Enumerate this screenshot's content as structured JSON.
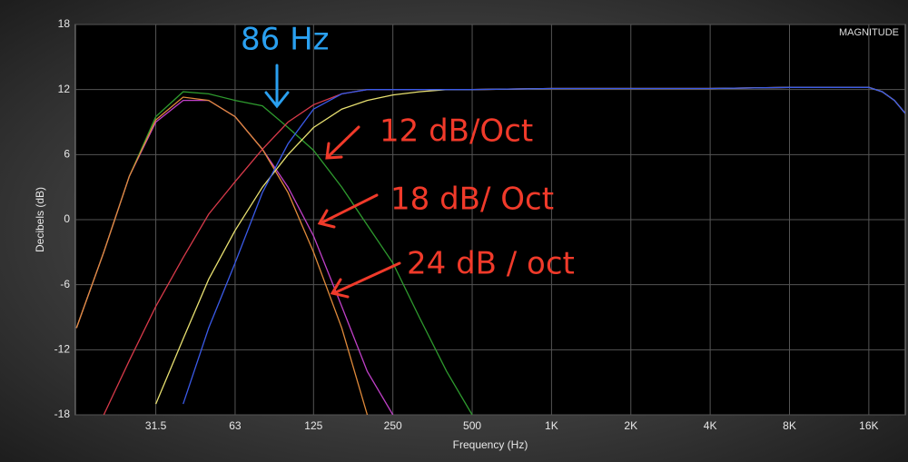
{
  "chart_data": {
    "type": "line",
    "panel_label": "MAGNITUDE",
    "xlabel": "Frequency (Hz)",
    "ylabel": "Decibels (dB)",
    "xscale": "log",
    "grid": true,
    "xlim": [
      15.6,
      22000
    ],
    "ylim": [
      -18,
      18
    ],
    "xticks": [
      31.5,
      63,
      125,
      250,
      500,
      {
        "value": 1000,
        "label": "1K"
      },
      {
        "value": 2000,
        "label": "2K"
      },
      {
        "value": 4000,
        "label": "4K"
      },
      {
        "value": 8000,
        "label": "8K"
      },
      {
        "value": 16000,
        "label": "16K"
      }
    ],
    "yticks": [
      -18,
      -12,
      -6,
      0,
      6,
      12,
      18
    ],
    "x": [
      15.75,
      20,
      25,
      31.5,
      40,
      50,
      63,
      80,
      100,
      125,
      160,
      200,
      250,
      315,
      400,
      500,
      1000,
      2000,
      4000,
      8000,
      16000,
      18000,
      20000,
      22000
    ],
    "series": [
      {
        "color": "#2e9a2e",
        "values": [
          -10,
          -3,
          4,
          9.5,
          11.8,
          11.6,
          11,
          10.5,
          8.5,
          6.4,
          3,
          -0.5,
          -4,
          -9,
          -14,
          -18,
          null,
          null,
          null,
          null,
          null,
          null,
          null,
          null
        ]
      },
      {
        "color": "#c040c8",
        "values": [
          -10,
          -3,
          4,
          9,
          11,
          11,
          9.5,
          6.5,
          3,
          -1.5,
          -8,
          -14,
          -18,
          null,
          null,
          null,
          null,
          null,
          null,
          null,
          null,
          null,
          null,
          null
        ]
      },
      {
        "color": "#e08a3a",
        "values": [
          -10,
          -3,
          4,
          9.2,
          11.3,
          11,
          9.5,
          6.5,
          2.5,
          -3,
          -10,
          -18,
          null,
          null,
          null,
          null,
          null,
          null,
          null,
          null,
          null,
          null,
          null,
          null
        ]
      },
      {
        "color": "#d83a4a",
        "values": [
          null,
          -18,
          -13,
          -8,
          -3.5,
          0.5,
          3.5,
          6.5,
          9,
          10.6,
          11.6,
          12,
          12,
          12,
          12,
          12,
          12.1,
          12.1,
          12.1,
          12.2,
          12.2,
          11.8,
          11,
          9.8
        ]
      },
      {
        "color": "#e8e070",
        "values": [
          null,
          null,
          null,
          -17,
          -11,
          -5.5,
          -1,
          3,
          6,
          8.5,
          10.2,
          11,
          11.5,
          11.8,
          12,
          12,
          12.1,
          12.1,
          12.1,
          12.2,
          12.2,
          11.8,
          11,
          9.8
        ]
      },
      {
        "color": "#3a5ae8",
        "values": [
          null,
          null,
          null,
          null,
          -17,
          -10,
          -4,
          2.5,
          7,
          10.2,
          11.6,
          12,
          12,
          12,
          12,
          12,
          12.1,
          12.1,
          12.1,
          12.2,
          12.2,
          11.8,
          11,
          9.8
        ]
      }
    ],
    "annotations": [
      {
        "text": "86 Hz",
        "color": "#2aa0f0"
      },
      {
        "text": "12 dB/Oct",
        "color": "#f03a2a"
      },
      {
        "text": "18 dB/ Oct",
        "color": "#f03a2a"
      },
      {
        "text": "24 dB / oct",
        "color": "#f03a2a"
      }
    ]
  }
}
